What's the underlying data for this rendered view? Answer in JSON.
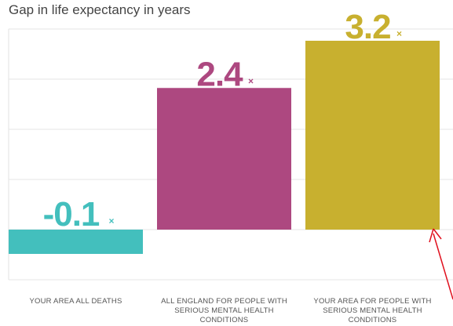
{
  "chart_data": {
    "type": "bar",
    "title": "Gap in life expectancy in years",
    "categories": [
      [
        "YOUR AREA ALL DEATHS"
      ],
      [
        "ALL ENGLAND FOR PEOPLE WITH",
        "SERIOUS MENTAL HEALTH",
        "CONDITIONS"
      ],
      [
        "YOUR AREA FOR PEOPLE WITH",
        "SERIOUS MENTAL HEALTH",
        "CONDITIONS"
      ]
    ],
    "values": [
      -0.1,
      2.4,
      3.2
    ],
    "value_labels": [
      "-0.1",
      "2.4",
      "3.2"
    ],
    "value_suffix": "×",
    "colors": [
      "#43bfbd",
      "#ad4880",
      "#c8b02f"
    ],
    "annotation_color": "#e0101e",
    "ylim": [
      -0.5,
      3.5
    ],
    "grid": true,
    "xlabel": "",
    "ylabel": ""
  }
}
